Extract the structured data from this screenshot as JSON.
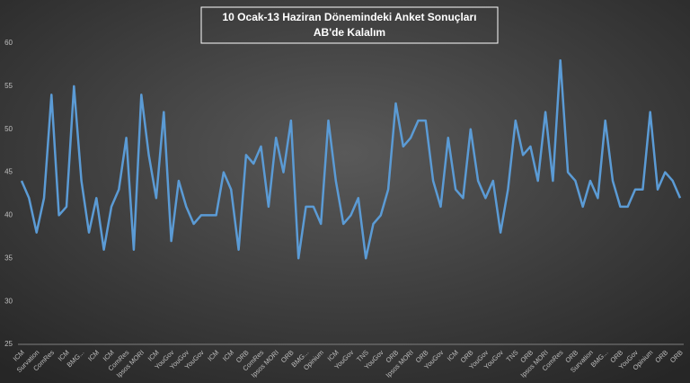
{
  "chart_data": {
    "type": "line",
    "title": "10 Ocak-13 Haziran Dönemindeki Anket Sonuçları",
    "subtitle": "AB'de Kalalım",
    "color": "#5b9bd5",
    "ylim": [
      25,
      60
    ],
    "yticks": [
      25,
      30,
      35,
      40,
      45,
      50,
      55,
      60
    ],
    "grid": false,
    "categories": [
      "ICM",
      null,
      "Survation",
      null,
      "ComRes",
      null,
      "ICM",
      null,
      "BMG...",
      null,
      "ICM",
      null,
      "ICM",
      null,
      "ComRes",
      null,
      "Ipsos MORI",
      null,
      "ICM",
      null,
      "YouGov",
      null,
      "YouGov",
      null,
      "YouGov",
      null,
      "ICM",
      null,
      "ICM",
      null,
      "ORB",
      null,
      "ComRes",
      null,
      "Ipsos MORI",
      null,
      "ORB",
      null,
      "BMG...",
      null,
      "Opinium",
      null,
      "ICM",
      null,
      "YouGov",
      null,
      "TNS",
      null,
      "YouGov",
      null,
      "ORB",
      null,
      "Ipsos MORI",
      null,
      "ORB",
      null,
      "YouGov",
      null,
      "ICM",
      null,
      "ORB",
      null,
      "YouGov",
      null,
      "YouGov",
      null,
      "TNS",
      null,
      "ORB",
      null,
      "Ipsos MORI",
      null,
      "ComRes",
      null,
      "ORB",
      null,
      "Survation",
      null,
      "BMG...",
      null,
      "ORB",
      null,
      "YouGov",
      null,
      "Opinium",
      null,
      "ORB",
      null,
      "ORB"
    ],
    "values": [
      44,
      42,
      38,
      42,
      54,
      40,
      41,
      55,
      44,
      38,
      42,
      36,
      41,
      43,
      49,
      36,
      54,
      47,
      42,
      52,
      37,
      44,
      41,
      39,
      40,
      40,
      40,
      45,
      43,
      36,
      47,
      46,
      48,
      41,
      49,
      45,
      51,
      35,
      41,
      41,
      39,
      51,
      44,
      39,
      40,
      42,
      35,
      39,
      40,
      43,
      53,
      48,
      49,
      51,
      51,
      44,
      41,
      49,
      43,
      42,
      50,
      44,
      42,
      44,
      38,
      43,
      51,
      47,
      48,
      44,
      52,
      44,
      58,
      45,
      44,
      41,
      44,
      42,
      51,
      44,
      41,
      41,
      43,
      43,
      52,
      43,
      45,
      44,
      42
    ]
  }
}
